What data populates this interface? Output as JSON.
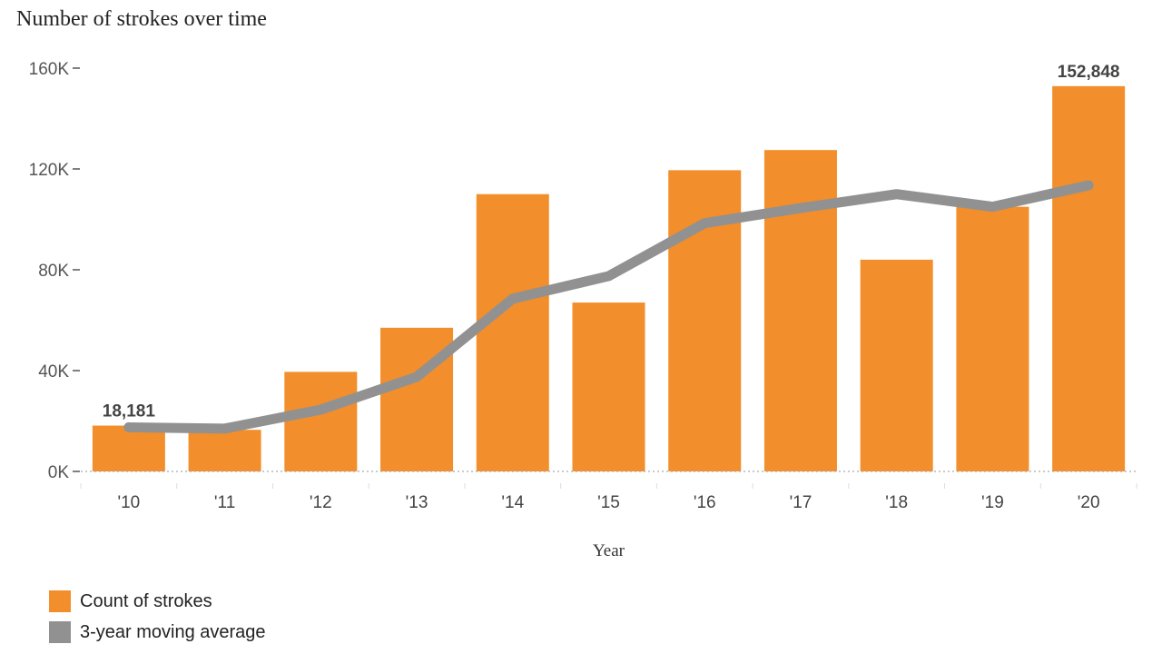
{
  "chart_data": {
    "type": "bar",
    "title": "Number of strokes over time",
    "xlabel": "Year",
    "ylabel": "",
    "categories": [
      "'10",
      "'11",
      "'12",
      "'13",
      "'14",
      "'15",
      "'16",
      "'17",
      "'18",
      "'19",
      "'20"
    ],
    "series": [
      {
        "name": "Count of strokes",
        "type": "bar",
        "color": "#f28e2b",
        "values": [
          18181,
          16500,
          39500,
          57000,
          110000,
          67000,
          119500,
          127500,
          84000,
          105000,
          152848
        ]
      },
      {
        "name": "3-year moving average",
        "type": "line",
        "color": "#919191",
        "values": [
          17500,
          17000,
          24500,
          37500,
          68500,
          77500,
          98500,
          104500,
          110000,
          105000,
          113500
        ]
      }
    ],
    "data_labels": [
      {
        "category": "'10",
        "text": "18,181"
      },
      {
        "category": "'20",
        "text": "152,848"
      }
    ],
    "y_ticks": [
      {
        "value": 0,
        "label": "0K"
      },
      {
        "value": 40000,
        "label": "40K"
      },
      {
        "value": 80000,
        "label": "80K"
      },
      {
        "value": 120000,
        "label": "120K"
      },
      {
        "value": 160000,
        "label": "160K"
      }
    ],
    "ylim": [
      0,
      160000
    ],
    "grid": false,
    "legend_position": "bottom-left"
  }
}
